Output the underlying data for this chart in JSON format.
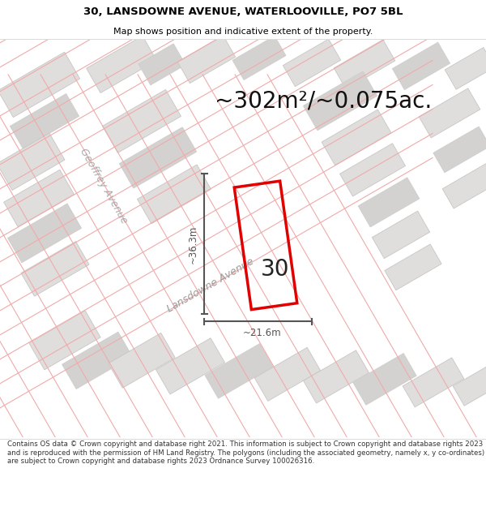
{
  "title": "30, LANSDOWNE AVENUE, WATERLOOVILLE, PO7 5BL",
  "subtitle": "Map shows position and indicative extent of the property.",
  "area_text": "~302m²/~0.075ac.",
  "address_number": "30",
  "street_label": "Lansdowne Avenue",
  "street_label2": "Geoffrey Avenue",
  "dim_height": "~36.3m",
  "dim_width": "~21.6m",
  "footer": "Contains OS data © Crown copyright and database right 2021. This information is subject to Crown copyright and database rights 2023 and is reproduced with the permission of HM Land Registry. The polygons (including the associated geometry, namely x, y co-ordinates) are subject to Crown copyright and database rights 2023 Ordnance Survey 100026316.",
  "map_bg": "#f2f0ee",
  "road_color": "#ffffff",
  "block_fill": "#e0dedd",
  "block_fill2": "#d4d2d0",
  "block_edge": "#c8c6c4",
  "cadastral_color": "#f0aaaa",
  "red_line": "#e00000",
  "dim_color": "#555555",
  "title_fontsize": 9.5,
  "subtitle_fontsize": 8,
  "area_fontsize": 20,
  "footer_fontsize": 6.2
}
